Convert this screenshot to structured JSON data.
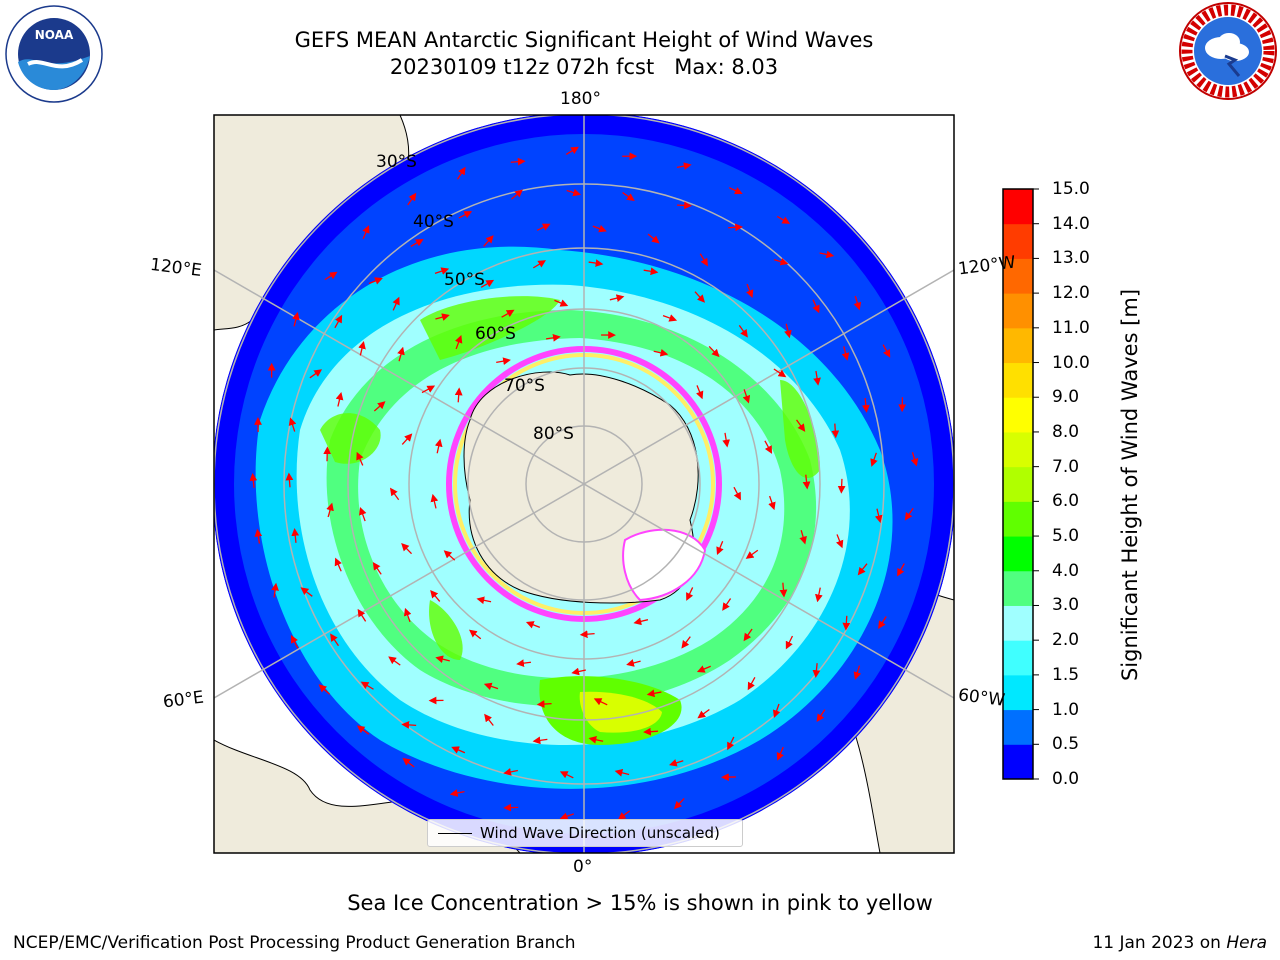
{
  "header": {
    "title_line1": "GEFS MEAN Antarctic Significant Height of Wind Waves",
    "title_line2": "20230109 t12z 072h fcst   Max: 8.03"
  },
  "logos": {
    "left": {
      "name": "noaa-logo",
      "text": "NOAA"
    },
    "right": {
      "name": "nws-logo",
      "text": "NATIONAL WEATHER SERVICE"
    }
  },
  "map": {
    "longitude_labels": [
      "180°",
      "120°E",
      "120°W",
      "60°E",
      "60°W",
      "0°"
    ],
    "latitude_labels": [
      "30°S",
      "40°S",
      "50°S",
      "60°S",
      "70°S",
      "80°S"
    ],
    "legend_label": "Wind Wave Direction (unscaled)",
    "colors": {
      "land": "#efebdc",
      "coast": "#000000",
      "arrow": "#ff0000",
      "grid": "#b3b3b3",
      "ice": "#ff44ff"
    }
  },
  "chart_data": {
    "type": "heatmap",
    "title": "GEFS MEAN Antarctic Significant Height of Wind Waves",
    "subtitle": "20230109 t12z 072h fcst   Max: 8.03",
    "max_value": 8.03,
    "colorbar": {
      "label": "Significant Height of Wind Waves [m]",
      "range": [
        0,
        15
      ],
      "ticks": [
        "0.0",
        "0.5",
        "1.0",
        "1.5",
        "2.0",
        "3.0",
        "4.0",
        "5.0",
        "6.0",
        "7.0",
        "8.0",
        "9.0",
        "10.0",
        "11.0",
        "12.0",
        "13.0",
        "14.0",
        "15.0"
      ],
      "colors": [
        "#0000ff",
        "#0070ff",
        "#00e8ff",
        "#40ffff",
        "#a0ffff",
        "#50ff80",
        "#00ff00",
        "#60ff00",
        "#b0ff00",
        "#d8ff00",
        "#ffff00",
        "#ffe000",
        "#ffb800",
        "#ff9000",
        "#ff6800",
        "#ff3c00",
        "#ff0000"
      ]
    }
  },
  "caption": "Sea Ice Concentration > 15% is shown in pink to yellow",
  "footer": {
    "left": "NCEP/EMC/Verification Post Processing Product Generation Branch",
    "right_prefix": "11 Jan 2023 on ",
    "right_machine": "Hera"
  }
}
